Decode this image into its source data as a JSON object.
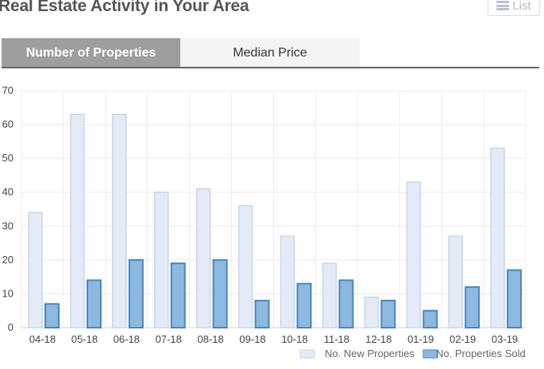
{
  "header": {
    "title": "Real Estate Activity in Your Area",
    "list_label": "List",
    "list_icon": "list-icon"
  },
  "tabs": [
    {
      "label": "Number of Properties",
      "active": true
    },
    {
      "label": "Median Price",
      "active": false
    }
  ],
  "colors": {
    "new_fill": "#e4ebf7",
    "new_stroke": "#c9d6ea",
    "sold_fill": "#8db8df",
    "sold_stroke": "#4a86bd"
  },
  "chart_data": {
    "type": "bar",
    "categories": [
      "04-18",
      "05-18",
      "06-18",
      "07-18",
      "08-18",
      "09-18",
      "10-18",
      "11-18",
      "12-18",
      "01-19",
      "02-19",
      "03-19"
    ],
    "series": [
      {
        "name": "No. New Properties",
        "values": [
          34,
          63,
          63,
          40,
          41,
          36,
          27,
          19,
          9,
          43,
          27,
          53
        ]
      },
      {
        "name": "No. Properties Sold",
        "values": [
          7,
          14,
          20,
          19,
          20,
          8,
          13,
          14,
          8,
          5,
          12,
          17
        ]
      }
    ],
    "ylim": [
      0,
      70
    ],
    "yticks": [
      0,
      10,
      20,
      30,
      40,
      50,
      60,
      70
    ],
    "grid": true,
    "legend_position": "bottom-right"
  }
}
